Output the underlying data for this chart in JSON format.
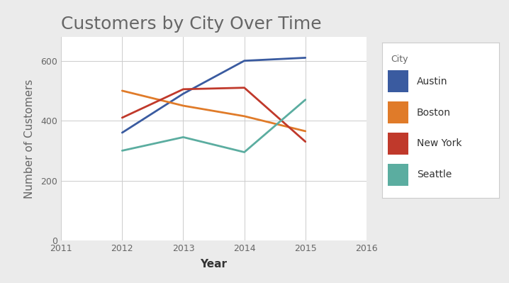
{
  "title": "Customers by City Over Time",
  "xlabel": "Year",
  "ylabel": "Number of Customers",
  "years": [
    2012,
    2013,
    2014,
    2015
  ],
  "xlim": [
    2011,
    2016
  ],
  "ylim": [
    0,
    680
  ],
  "yticks": [
    0,
    200,
    400,
    600
  ],
  "xticks": [
    2011,
    2012,
    2013,
    2014,
    2015,
    2016
  ],
  "series": [
    {
      "label": "Austin",
      "color": "#3A5BA0",
      "values": [
        360,
        490,
        600,
        610
      ]
    },
    {
      "label": "Boston",
      "color": "#E07B29",
      "values": [
        500,
        450,
        415,
        365
      ]
    },
    {
      "label": "New York",
      "color": "#C0392B",
      "values": [
        410,
        505,
        510,
        330
      ]
    },
    {
      "label": "Seattle",
      "color": "#5BADA0",
      "values": [
        300,
        345,
        295,
        470
      ]
    }
  ],
  "legend_title": "City",
  "background_color": "#EBEBEB",
  "plot_bg_color": "#FFFFFF",
  "title_fontsize": 18,
  "axis_label_fontsize": 11,
  "tick_fontsize": 9,
  "legend_fontsize": 10,
  "line_width": 2.0
}
